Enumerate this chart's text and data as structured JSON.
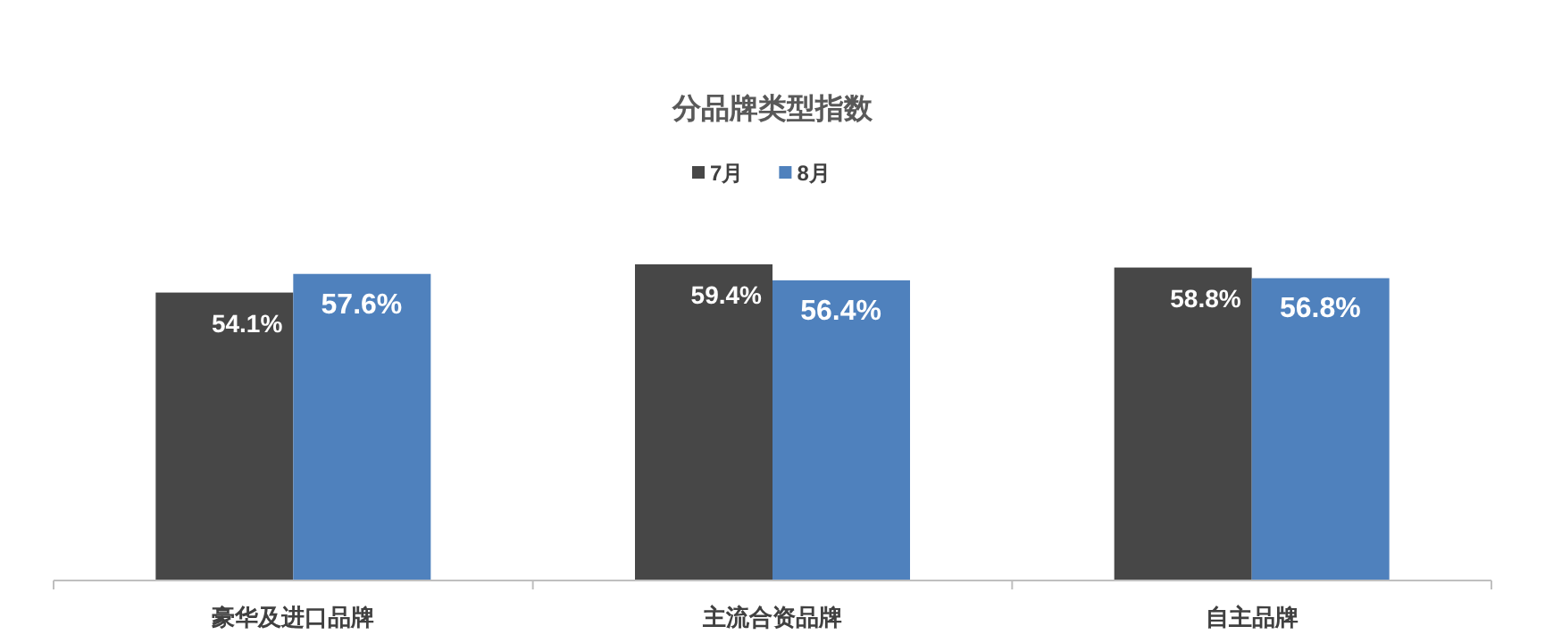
{
  "chart_data": {
    "type": "bar",
    "title": "分品牌类型指数",
    "categories": [
      "豪华及进口品牌",
      "主流合资品牌",
      "自主品牌"
    ],
    "series": [
      {
        "name": "7月",
        "color": "#474747",
        "values": [
          54.1,
          59.4,
          58.8
        ],
        "value_labels": [
          "54.1%",
          "59.4%",
          "58.8%"
        ]
      },
      {
        "name": "8月",
        "color": "#4f81bd",
        "values": [
          57.6,
          56.4,
          56.8
        ],
        "value_labels": [
          "57.6%",
          "56.4%",
          "56.8%"
        ]
      }
    ],
    "relative": false,
    "legend": "top"
  }
}
